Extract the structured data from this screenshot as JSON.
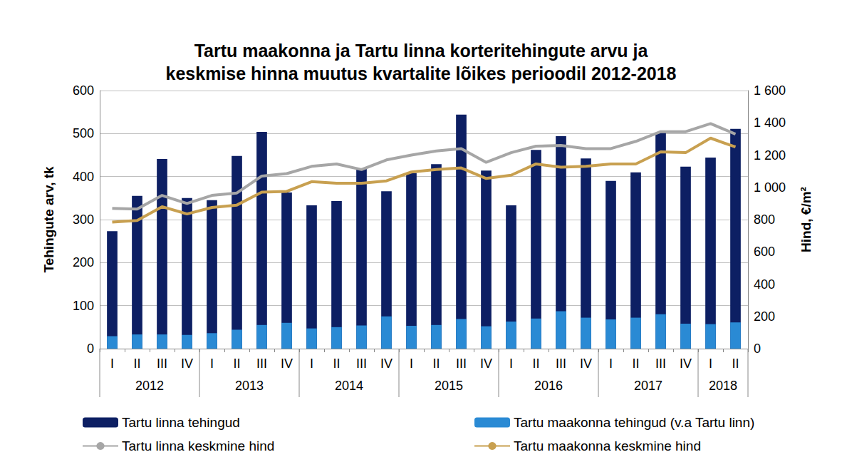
{
  "chart_data": {
    "type": "bar",
    "title": "Tartu maakonna ja Tartu linna korteritehingute arvu ja\nkeskmise hinna muutus kvartalite lõikes perioodil 2012-2018",
    "y_label": "Tehingute arv, tk",
    "y2_label": "Hind, €/m²",
    "categories": [
      "I",
      "II",
      "III",
      "IV",
      "I",
      "II",
      "III",
      "IV",
      "I",
      "II",
      "III",
      "IV",
      "I",
      "II",
      "III",
      "IV",
      "I",
      "II",
      "III",
      "IV",
      "I",
      "II",
      "III",
      "IV",
      "I",
      "II"
    ],
    "category_groups": [
      "2012",
      "2012",
      "2012",
      "2012",
      "2013",
      "2013",
      "2013",
      "2013",
      "2014",
      "2014",
      "2014",
      "2014",
      "2015",
      "2015",
      "2015",
      "2015",
      "2016",
      "2016",
      "2016",
      "2016",
      "2017",
      "2017",
      "2017",
      "2017",
      "2018",
      "2018"
    ],
    "series": [
      {
        "name": "Tartu linna tehingud",
        "type": "bar",
        "color": "#0d1f63",
        "values": [
          273,
          355,
          441,
          350,
          345,
          448,
          504,
          363,
          333,
          343,
          418,
          366,
          408,
          429,
          544,
          414,
          333,
          462,
          494,
          442,
          390,
          410,
          502,
          423,
          444,
          511
        ]
      },
      {
        "name": "Tartu maakonna tehingud (v.a Tartu linn)",
        "type": "bar",
        "color": "#2a8ad4",
        "values": [
          29,
          33,
          33,
          32,
          36,
          44,
          55,
          60,
          47,
          50,
          54,
          75,
          53,
          55,
          69,
          52,
          63,
          70,
          87,
          72,
          68,
          72,
          80,
          58,
          57,
          61
        ]
      },
      {
        "name": "Tartu linna keskmine hind",
        "type": "line",
        "axis": "y2",
        "color": "#a6a6a6",
        "values": [
          870,
          865,
          950,
          900,
          950,
          965,
          1070,
          1085,
          1130,
          1145,
          1110,
          1170,
          1200,
          1225,
          1240,
          1155,
          1215,
          1255,
          1260,
          1240,
          1240,
          1285,
          1345,
          1345,
          1395,
          1330
        ]
      },
      {
        "name": "Tartu maakonna keskmine hind",
        "type": "line",
        "axis": "y2",
        "color": "#c8a050",
        "values": [
          785,
          795,
          880,
          835,
          875,
          890,
          970,
          975,
          1035,
          1025,
          1025,
          1040,
          1095,
          1110,
          1120,
          1055,
          1075,
          1145,
          1125,
          1130,
          1145,
          1145,
          1220,
          1215,
          1305,
          1250
        ]
      }
    ],
    "ylim": [
      0,
      600
    ],
    "yticks": [
      0,
      100,
      200,
      300,
      400,
      500,
      600
    ],
    "y2lim": [
      0,
      1600
    ],
    "y2ticks": [
      0,
      200,
      400,
      600,
      800,
      {
        "value": 1000,
        "label": "1 000"
      },
      {
        "value": 1200,
        "label": "1 200"
      },
      {
        "value": 1400,
        "label": "1 400"
      },
      {
        "value": 1600,
        "label": "1 600"
      }
    ],
    "grid": true,
    "legend": "bottom"
  }
}
